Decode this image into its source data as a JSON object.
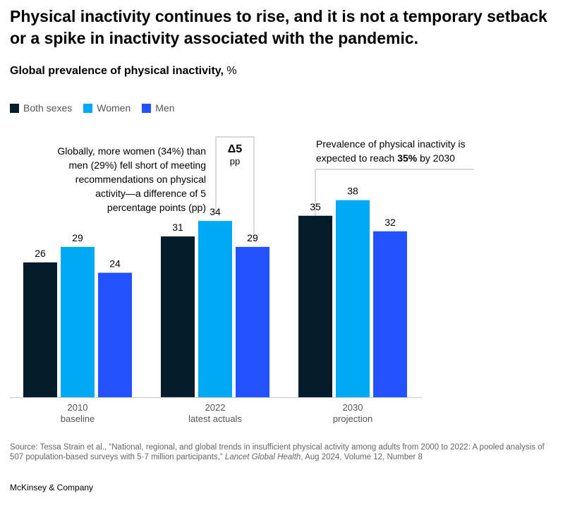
{
  "header": {
    "headline": "Physical inactivity continues to rise, and it is not a temporary setback or a spike in inactivity associated with the pandemic.",
    "subtitle": "Global prevalence of physical inactivity,",
    "unit": "%"
  },
  "legend": [
    {
      "label": "Both sexes",
      "color": "#051c2c"
    },
    {
      "label": "Women",
      "color": "#00a9f4"
    },
    {
      "label": "Men",
      "color": "#2251ff"
    }
  ],
  "chart_data": {
    "type": "bar",
    "categories": [
      "2010 baseline",
      "2022 latest actuals",
      "2030 projection"
    ],
    "category_lines": [
      [
        "2010",
        "baseline"
      ],
      [
        "2022",
        "latest actuals"
      ],
      [
        "2030",
        "projection"
      ]
    ],
    "series": [
      {
        "name": "Both sexes",
        "values": [
          26,
          31,
          35
        ],
        "color": "#051c2c"
      },
      {
        "name": "Women",
        "values": [
          29,
          34,
          38
        ],
        "color": "#00a9f4"
      },
      {
        "name": "Men",
        "values": [
          24,
          29,
          32
        ],
        "color": "#2251ff"
      }
    ],
    "ylim": [
      0,
      40
    ],
    "data_labels": true,
    "legend_position": "top-left",
    "grid": false
  },
  "annotations": {
    "left_callout_parts": [
      {
        "text": "Globally, more women (34%) than men (29%) fell short of meeting recommendations",
        "bold": false
      },
      {
        "text": " on physical activity—a difference of 5 percentage points (pp)",
        "bold": false
      }
    ],
    "delta": {
      "value": "Δ5",
      "unit": "pp"
    },
    "right_callout_parts": [
      {
        "text": "Prevalence of physical inactivity is expected to ",
        "bold": false
      },
      {
        "text": "reach ",
        "bold": false
      },
      {
        "text": "35%",
        "bold": true
      },
      {
        "text": " by 2030",
        "bold": false
      }
    ]
  },
  "footer": {
    "source_prefix": "Source: Tessa Strain et al., “National, regional, and global trends in insufficient physical activity among adults from 2000 to 2022: A pooled analysis of 507 population-based surveys with 5·7 million participants,” ",
    "source_journal": "Lancet Global Health",
    "source_suffix": ", Aug 2024, Volume 12, Number 8",
    "brand": "McKinsey & Company"
  }
}
